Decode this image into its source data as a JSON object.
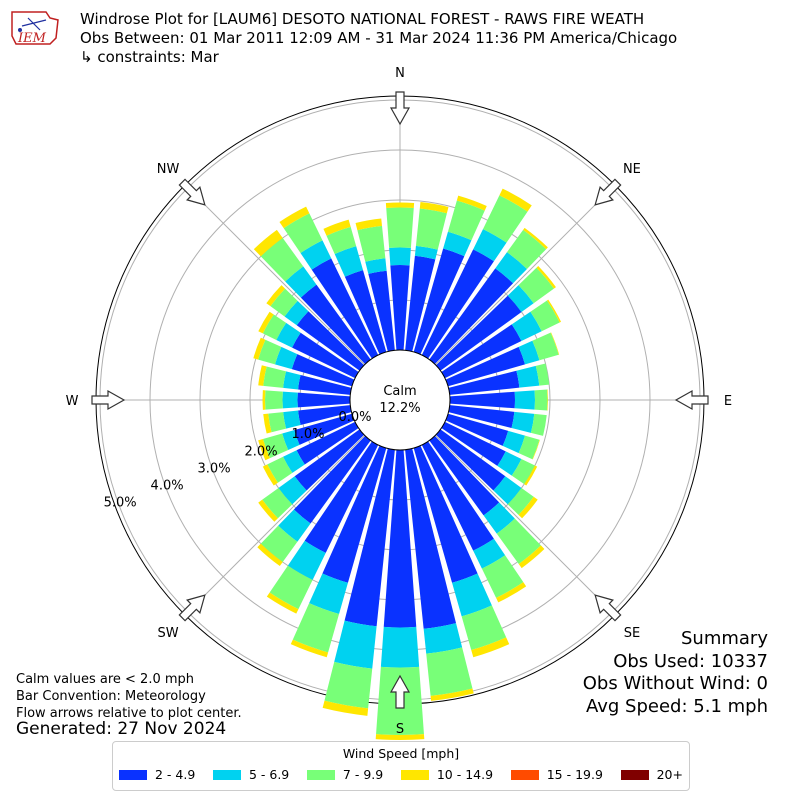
{
  "title": {
    "line1": "Windrose Plot for [LAUM6] DESOTO NATIONAL FOREST - RAWS FIRE WEATH",
    "line2": "Obs Between: 01 Mar 2011 12:09 AM - 31 Mar 2024 11:36 PM America/Chicago",
    "line3": "↳ constraints: Mar"
  },
  "logo_text": "IEM",
  "chart_data": {
    "type": "windrose",
    "directions_deg": [
      0,
      10,
      20,
      30,
      40,
      50,
      60,
      70,
      80,
      90,
      100,
      110,
      120,
      130,
      140,
      150,
      160,
      170,
      180,
      190,
      200,
      210,
      220,
      230,
      240,
      250,
      260,
      270,
      280,
      290,
      300,
      310,
      320,
      330,
      340,
      350
    ],
    "bins": [
      {
        "name": "2 - 4.9",
        "color": "#0a32ff"
      },
      {
        "name": "5 - 6.9",
        "color": "#00d2f0"
      },
      {
        "name": "7 - 9.9",
        "color": "#78ff78"
      },
      {
        "name": "10 - 14.9",
        "color": "#ffe600"
      },
      {
        "name": "15 - 19.9",
        "color": "#ff4b00"
      },
      {
        "name": "20+",
        "color": "#800000"
      }
    ],
    "cumulative_percent": [
      [
        1.7,
        2.05,
        2.85,
        2.95
      ],
      [
        1.9,
        2.1,
        2.85,
        2.98
      ],
      [
        2.15,
        2.5,
        3.15,
        3.25
      ],
      [
        2.35,
        2.8,
        3.55,
        3.7
      ],
      [
        2.25,
        2.65,
        3.2,
        3.25
      ],
      [
        2.0,
        2.3,
        2.8,
        2.85
      ],
      [
        1.7,
        2.15,
        2.55,
        2.58
      ],
      [
        1.6,
        1.9,
        2.3,
        2.31
      ],
      [
        1.4,
        1.8,
        2.0,
        2.0
      ],
      [
        1.3,
        1.7,
        1.95,
        1.96
      ],
      [
        1.3,
        1.7,
        1.95,
        1.95
      ],
      [
        1.25,
        1.6,
        1.9,
        1.91
      ],
      [
        1.35,
        1.7,
        2.0,
        2.05
      ],
      [
        1.6,
        2.0,
        2.3,
        2.4
      ],
      [
        1.85,
        2.3,
        3.05,
        3.15
      ],
      [
        2.35,
        2.75,
        3.4,
        3.5
      ],
      [
        2.8,
        3.5,
        4.2,
        4.35
      ],
      [
        3.6,
        4.1,
        4.95,
        5.05
      ],
      [
        3.55,
        4.35,
        5.7,
        5.8
      ],
      [
        3.55,
        4.4,
        5.2,
        5.35
      ],
      [
        2.8,
        3.45,
        4.25,
        4.35
      ],
      [
        2.4,
        3.0,
        3.65,
        3.75
      ],
      [
        2.05,
        2.5,
        3.0,
        3.1
      ],
      [
        1.6,
        2.0,
        2.4,
        2.5
      ],
      [
        1.3,
        1.6,
        1.95,
        2.05
      ],
      [
        1.2,
        1.45,
        1.85,
        1.95
      ],
      [
        1.05,
        1.35,
        1.65,
        1.75
      ],
      [
        1.05,
        1.35,
        1.7,
        1.75
      ],
      [
        1.05,
        1.35,
        1.75,
        1.85
      ],
      [
        1.25,
        1.6,
        1.95,
        2.05
      ],
      [
        1.4,
        1.75,
        2.05,
        2.15
      ],
      [
        1.55,
        1.85,
        2.2,
        2.3
      ],
      [
        1.85,
        2.3,
        3.0,
        3.2
      ],
      [
        2.15,
        2.55,
        3.15,
        3.3
      ],
      [
        1.7,
        2.2,
        2.6,
        2.75
      ],
      [
        1.6,
        1.85,
        2.5,
        2.65
      ]
    ],
    "radial_ticks": [
      "0.0%",
      "1.0%",
      "2.0%",
      "3.0%",
      "4.0%",
      "5.0%"
    ],
    "radial_tick_values": [
      0,
      1,
      2,
      3,
      4,
      5
    ],
    "calm_label": "Calm",
    "calm_value": "12.2%",
    "compass": [
      "N",
      "NE",
      "E",
      "SE",
      "S",
      "SW",
      "W",
      "NW"
    ],
    "legend_title": "Wind Speed [mph]",
    "legend_placement": "bottom-center"
  },
  "notes": {
    "line1": "Calm values are < 2.0 mph",
    "line2": "Bar Convention: Meteorology",
    "line3": "Flow arrows relative to plot center."
  },
  "generated": "Generated: 27 Nov 2024",
  "summary": {
    "title": "Summary",
    "obs_used": "Obs Used: 10337",
    "obs_without_wind": "Obs Without Wind: 0",
    "avg_speed": "Avg Speed: 5.1 mph"
  }
}
